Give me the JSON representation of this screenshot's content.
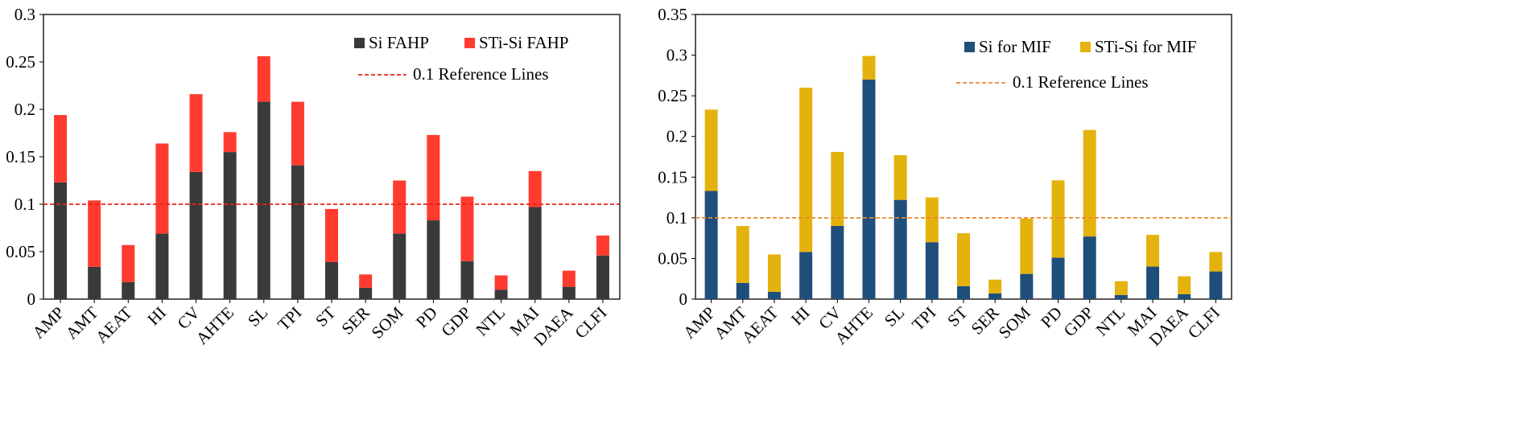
{
  "chart_data": [
    {
      "type": "bar",
      "stacked": true,
      "categories": [
        "AMP",
        "AMT",
        "AEAT",
        "HI",
        "CV",
        "AHTE",
        "SL",
        "TPI",
        "ST",
        "SER",
        "SOM",
        "PD",
        "GDP",
        "NTL",
        "MAI",
        "DAEA",
        "CLFI"
      ],
      "series": [
        {
          "name": "Si  FAHP",
          "color": "#3a3a3a",
          "values": [
            0.123,
            0.034,
            0.018,
            0.069,
            0.134,
            0.155,
            0.208,
            0.141,
            0.039,
            0.012,
            0.069,
            0.083,
            0.04,
            0.01,
            0.097,
            0.013,
            0.046
          ]
        },
        {
          "name": "STi-Si FAHP",
          "color": "#ff3b30",
          "values": [
            0.071,
            0.07,
            0.039,
            0.095,
            0.082,
            0.021,
            0.048,
            0.067,
            0.056,
            0.014,
            0.056,
            0.09,
            0.068,
            0.015,
            0.038,
            0.017,
            0.021
          ]
        }
      ],
      "reference_line": {
        "value": 0.1,
        "label": "0.1 Reference Lines",
        "color": "#e8201a"
      },
      "ylim": [
        0,
        0.3
      ],
      "yticks": [
        "0",
        "0.05",
        "0.1",
        "0.15",
        "0.2",
        "0.25",
        "0.3"
      ],
      "ytick_values": [
        0,
        0.05,
        0.1,
        0.15,
        0.2,
        0.25,
        0.3
      ],
      "xlabel": "",
      "ylabel": "",
      "title": "",
      "legend_position": "top-right"
    },
    {
      "type": "bar",
      "stacked": true,
      "categories": [
        "AMP",
        "AMT",
        "AEAT",
        "HI",
        "CV",
        "AHTE",
        "SL",
        "TPI",
        "ST",
        "SER",
        "SOM",
        "PD",
        "GDP",
        "NTL",
        "MAI",
        "DAEA",
        "CLFI"
      ],
      "series": [
        {
          "name": "Si for MIF",
          "color": "#1f4e7a",
          "values": [
            0.133,
            0.02,
            0.009,
            0.058,
            0.09,
            0.27,
            0.122,
            0.07,
            0.016,
            0.007,
            0.031,
            0.051,
            0.077,
            0.005,
            0.04,
            0.006,
            0.034
          ]
        },
        {
          "name": "STi-Si for MIF",
          "color": "#e4b20c",
          "values": [
            0.1,
            0.07,
            0.046,
            0.202,
            0.091,
            0.029,
            0.055,
            0.055,
            0.065,
            0.017,
            0.068,
            0.095,
            0.131,
            0.017,
            0.039,
            0.022,
            0.024
          ]
        }
      ],
      "reference_line": {
        "value": 0.1,
        "label": "0.1 Reference Lines",
        "color": "#e88a2e"
      },
      "ylim": [
        0,
        0.35
      ],
      "yticks": [
        "0",
        "0.05",
        "0.1",
        "0.15",
        "0.2",
        "0.25",
        "0.3",
        "0.35"
      ],
      "ytick_values": [
        0,
        0.05,
        0.1,
        0.15,
        0.2,
        0.25,
        0.3,
        0.35
      ],
      "xlabel": "",
      "ylabel": "",
      "title": "",
      "legend_position": "top-right"
    }
  ]
}
